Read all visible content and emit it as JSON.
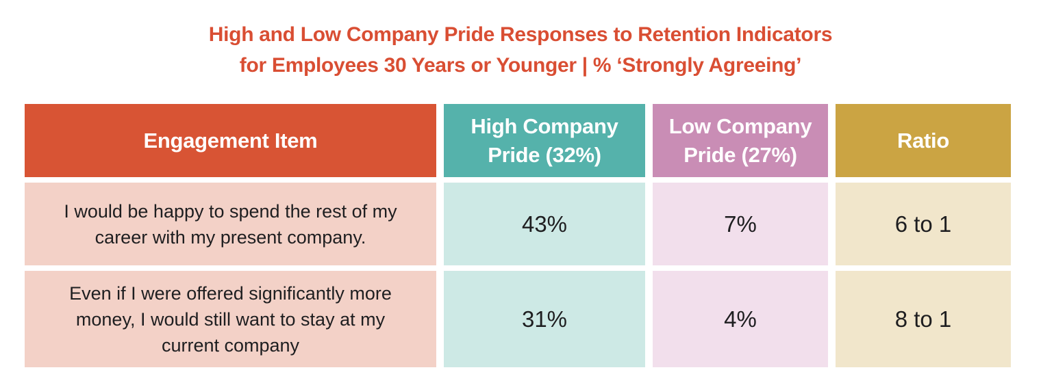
{
  "title": {
    "line1": "High and Low Company Pride Responses to Retention Indicators",
    "line2": "for Employees 30 Years or Younger | % ‘Strongly Agreeing’"
  },
  "table": {
    "columns": [
      {
        "label": "Engagement Item"
      },
      {
        "label": "High Company Pride (32%)"
      },
      {
        "label": "Low Company Pride (27%)"
      },
      {
        "label": "Ratio"
      }
    ],
    "rows": [
      {
        "item": "I would be happy to spend the rest of my career with my present company.",
        "high": "43%",
        "low": "7%",
        "ratio": "6 to 1"
      },
      {
        "item": "Even if I were offered significantly more money, I would still want to stay at my current company",
        "high": "31%",
        "low": "4%",
        "ratio": "8 to 1"
      }
    ]
  },
  "colors": {
    "title-red": "#D94E33",
    "header-red": "#D85434",
    "header-teal": "#55B2AB",
    "header-mauve": "#C98DB5",
    "header-gold": "#CBA443",
    "cell-salmon": "#F3D1C7",
    "cell-teal": "#CDE9E5",
    "cell-pink": "#F2DFEC",
    "cell-cream": "#F1E6CB",
    "body-text": "#1E1E20",
    "header-text": "#FFFFFF"
  },
  "chart_data": {
    "type": "table",
    "title": "High and Low Company Pride Responses to Retention Indicators for Employees 30 Years or Younger | % ‘Strongly Agreeing’",
    "columns": [
      "Engagement Item",
      "High Company Pride (32%)",
      "Low Company Pride (27%)",
      "Ratio"
    ],
    "rows": [
      [
        "I would be happy to spend the rest of my career with my present company.",
        "43%",
        "7%",
        "6 to 1"
      ],
      [
        "Even if I were offered significantly more money, I would still want to stay at my current company",
        "31%",
        "4%",
        "8 to 1"
      ]
    ],
    "notes": {
      "high_company_pride_group_share": "32%",
      "low_company_pride_group_share": "27%"
    }
  }
}
